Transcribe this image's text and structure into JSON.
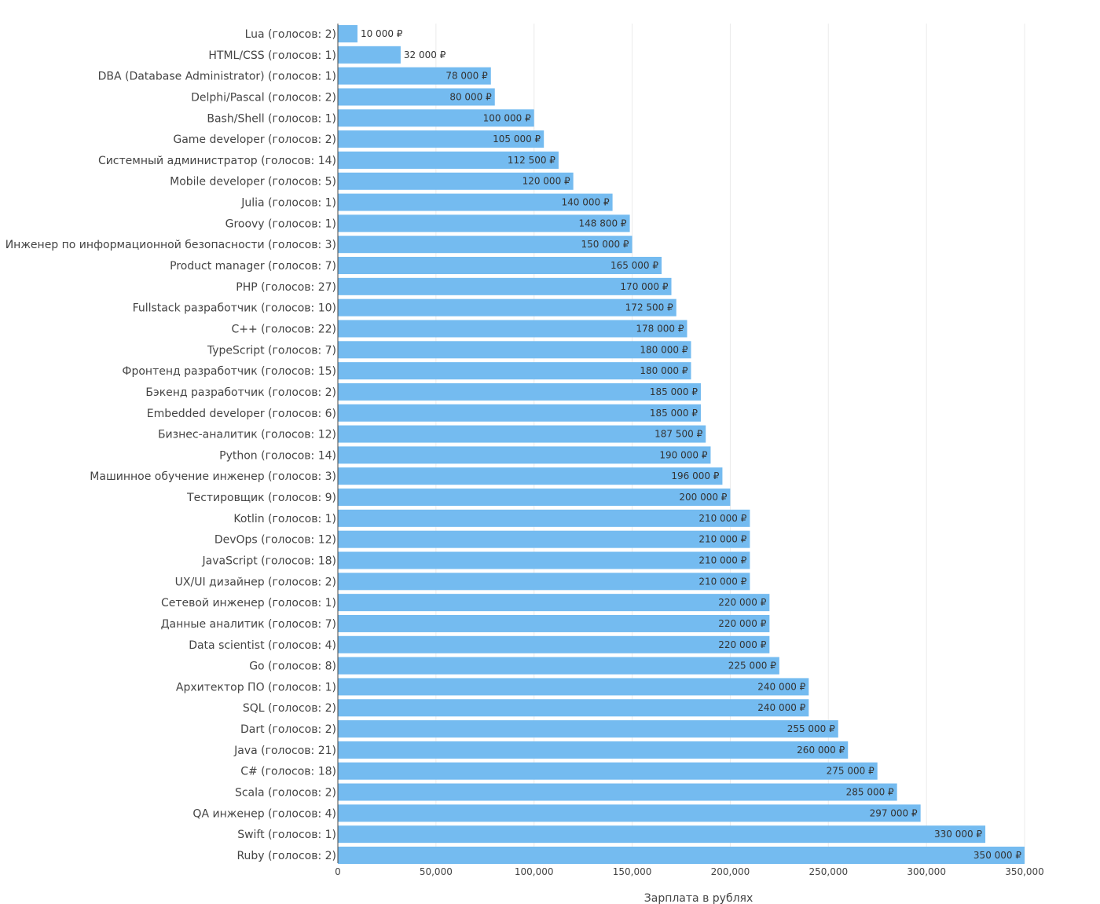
{
  "chart_data": {
    "type": "bar",
    "orientation": "horizontal",
    "xlabel": "Зарплата в рублях",
    "ylabel": "",
    "xlim": [
      0,
      350000
    ],
    "x_ticks": [
      0,
      50000,
      100000,
      150000,
      200000,
      250000,
      300000,
      350000
    ],
    "x_tick_labels": [
      "0",
      "50,000",
      "100,000",
      "150,000",
      "200,000",
      "250,000",
      "300,000",
      "350,000"
    ],
    "grid": "vertical",
    "bar_color": "#74bbf0",
    "categories": [
      "Lua (голосов: 2)",
      "HTML/CSS (голосов: 1)",
      "DBA (Database Administrator) (голосов: 1)",
      "Delphi/Pascal (голосов: 2)",
      "Bash/Shell (голосов: 1)",
      "Game developer (голосов: 2)",
      "Системный администратор (голосов: 14)",
      "Mobile developer (голосов: 5)",
      "Julia (голосов: 1)",
      "Groovy (голосов: 1)",
      "Инженер по информационной безопасности (голосов: 3)",
      "Product manager (голосов: 7)",
      "PHP (голосов: 27)",
      "Fullstack разработчик (голосов: 10)",
      "C++ (голосов: 22)",
      "TypeScript (голосов: 7)",
      "Фронтенд разработчик (голосов: 15)",
      "Бэкенд разработчик (голосов: 2)",
      "Embedded developer (голосов: 6)",
      "Бизнес-аналитик (голосов: 12)",
      "Python (голосов: 14)",
      "Машинное обучение инженер (голосов: 3)",
      "Тестировщик (голосов: 9)",
      "Kotlin (голосов: 1)",
      "DevOps (голосов: 12)",
      "JavaScript (голосов: 18)",
      "UX/UI дизайнер (голосов: 2)",
      "Сетевой инженер (голосов: 1)",
      "Данные аналитик (голосов: 7)",
      "Data scientist (голосов: 4)",
      "Go (голосов: 8)",
      "Архитектор ПО (голосов: 1)",
      "SQL (голосов: 2)",
      "Dart (голосов: 2)",
      "Java (голосов: 21)",
      "C# (голосов: 18)",
      "Scala (голосов: 2)",
      "QA инженер (голосов: 4)",
      "Swift (голосов: 1)",
      "Ruby (голосов: 2)"
    ],
    "values": [
      10000,
      32000,
      78000,
      80000,
      100000,
      105000,
      112500,
      120000,
      140000,
      148800,
      150000,
      165000,
      170000,
      172500,
      178000,
      180000,
      180000,
      185000,
      185000,
      187500,
      190000,
      196000,
      200000,
      210000,
      210000,
      210000,
      210000,
      220000,
      220000,
      220000,
      225000,
      240000,
      240000,
      255000,
      260000,
      275000,
      285000,
      297000,
      330000,
      350000
    ],
    "value_labels": [
      "10 000 ₽",
      "32 000 ₽",
      "78 000 ₽",
      "80 000 ₽",
      "100 000 ₽",
      "105 000 ₽",
      "112 500 ₽",
      "120 000 ₽",
      "140 000 ₽",
      "148 800 ₽",
      "150 000 ₽",
      "165 000 ₽",
      "170 000 ₽",
      "172 500 ₽",
      "178 000 ₽",
      "180 000 ₽",
      "180 000 ₽",
      "185 000 ₽",
      "185 000 ₽",
      "187 500 ₽",
      "190 000 ₽",
      "196 000 ₽",
      "200 000 ₽",
      "210 000 ₽",
      "210 000 ₽",
      "210 000 ₽",
      "210 000 ₽",
      "220 000 ₽",
      "220 000 ₽",
      "220 000 ₽",
      "225 000 ₽",
      "240 000 ₽",
      "240 000 ₽",
      "255 000 ₽",
      "260 000 ₽",
      "275 000 ₽",
      "285 000 ₽",
      "297 000 ₽",
      "330 000 ₽",
      "350 000 ₽"
    ]
  }
}
